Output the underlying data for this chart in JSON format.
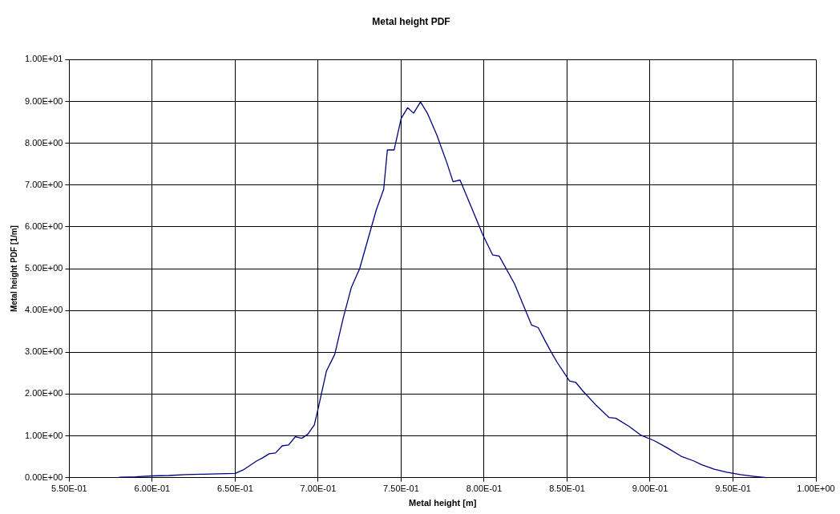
{
  "chart_data": {
    "type": "line",
    "title": "Metal height PDF",
    "xlabel": "Metal height [m]",
    "ylabel": "Metal height PDF [1/m]",
    "x": [
      0.58,
      0.59,
      0.6,
      0.61,
      0.62,
      0.63,
      0.64,
      0.65,
      0.6547,
      0.663,
      0.6664,
      0.6705,
      0.6743,
      0.6783,
      0.6822,
      0.6863,
      0.6901,
      0.6938,
      0.6977,
      0.7005,
      0.705,
      0.71,
      0.715,
      0.72,
      0.725,
      0.73,
      0.735,
      0.7395,
      0.7417,
      0.7458,
      0.75,
      0.7539,
      0.7575,
      0.7617,
      0.7658,
      0.7715,
      0.7775,
      0.7813,
      0.7855,
      0.792,
      0.7991,
      0.8051,
      0.8091,
      0.8183,
      0.8286,
      0.8326,
      0.8364,
      0.8398,
      0.844,
      0.8515,
      0.8552,
      0.8598,
      0.8673,
      0.8752,
      0.8794,
      0.8872,
      0.8947,
      0.9027,
      0.9105,
      0.9188,
      0.9263,
      0.9309,
      0.9387,
      0.9462,
      0.9545,
      0.9628,
      0.9702
    ],
    "series": [
      {
        "color": "#000080",
        "values": [
          0.01,
          0.02,
          0.04,
          0.05,
          0.07,
          0.08,
          0.09,
          0.1,
          0.18,
          0.4,
          0.47,
          0.57,
          0.59,
          0.76,
          0.78,
          0.98,
          0.94,
          1.04,
          1.26,
          1.74,
          2.55,
          2.95,
          3.8,
          4.55,
          5.0,
          5.7,
          6.4,
          6.9,
          7.84,
          7.84,
          8.59,
          8.85,
          8.72,
          8.99,
          8.72,
          8.2,
          7.54,
          7.08,
          7.12,
          6.5,
          5.82,
          5.33,
          5.3,
          4.64,
          3.65,
          3.59,
          3.3,
          3.05,
          2.76,
          2.31,
          2.28,
          2.06,
          1.74,
          1.44,
          1.42,
          1.23,
          1.01,
          0.88,
          0.71,
          0.51,
          0.4,
          0.31,
          0.2,
          0.13,
          0.07,
          0.03,
          0.0
        ]
      }
    ],
    "xlim": [
      0.55,
      1.0
    ],
    "xticks": [
      {
        "value": 0.55,
        "label": "5.50E-01"
      },
      {
        "value": 0.6,
        "label": "6.00E-01"
      },
      {
        "value": 0.65,
        "label": "6.50E-01"
      },
      {
        "value": 0.7,
        "label": "7.00E-01"
      },
      {
        "value": 0.75,
        "label": "7.50E-01"
      },
      {
        "value": 0.8,
        "label": "8.00E-01"
      },
      {
        "value": 0.85,
        "label": "8.50E-01"
      },
      {
        "value": 0.9,
        "label": "9.00E-01"
      },
      {
        "value": 0.95,
        "label": "9.50E-01"
      },
      {
        "value": 1.0,
        "label": "1.00E+00"
      }
    ],
    "ylim": [
      0,
      10
    ],
    "yticks": [
      {
        "value": 0,
        "label": "0.00E+00"
      },
      {
        "value": 1,
        "label": "1.00E+00"
      },
      {
        "value": 2,
        "label": "2.00E+00"
      },
      {
        "value": 3,
        "label": "3.00E+00"
      },
      {
        "value": 4,
        "label": "4.00E+00"
      },
      {
        "value": 5,
        "label": "5.00E+00"
      },
      {
        "value": 6,
        "label": "6.00E+00"
      },
      {
        "value": 7,
        "label": "7.00E+00"
      },
      {
        "value": 8,
        "label": "8.00E+00"
      },
      {
        "value": 9,
        "label": "9.00E+00"
      },
      {
        "value": 10,
        "label": "1.00E+01"
      }
    ],
    "grid": true,
    "legend": false,
    "marker": "none",
    "line_style": "solid"
  }
}
